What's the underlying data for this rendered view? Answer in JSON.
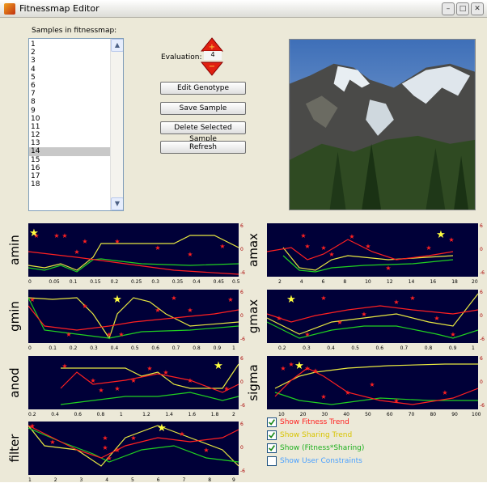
{
  "window": {
    "title": "Fitnessmap Editor",
    "min": "–",
    "max": "□",
    "close": "✕"
  },
  "samples": {
    "label": "Samples in fitnessmap:",
    "items": [
      "1",
      "2",
      "3",
      "4",
      "5",
      "6",
      "7",
      "8",
      "9",
      "10",
      "11",
      "12",
      "13",
      "14",
      "15",
      "16",
      "17",
      "18"
    ],
    "selected": "14"
  },
  "evaluation": {
    "label": "Evaluation:",
    "value": "4"
  },
  "buttons": {
    "edit": "Edit Genotype",
    "save": "Save Sample",
    "delete": "Delete Selected Sample",
    "refresh": "Refresh"
  },
  "colors": {
    "fitness": "#ff2020",
    "sharing": "#e8e840",
    "combined": "#20d020",
    "constraints": "#4aa0ff",
    "star": "#ffff40"
  },
  "plots": [
    {
      "name": "amin",
      "xticks": [
        "0",
        "0.05",
        "0.1",
        "0.15",
        "0.2",
        "0.25",
        "0.3",
        "0.35",
        "0.4",
        "0.45",
        "0.5"
      ],
      "rticks": [
        "6",
        "0",
        "-6"
      ]
    },
    {
      "name": "amax",
      "xticks": [
        "2",
        "4",
        "6",
        "8",
        "10",
        "12",
        "14",
        "16",
        "18",
        "20"
      ],
      "rticks": [
        "6",
        "0",
        "-6"
      ]
    },
    {
      "name": "gmin",
      "xticks": [
        "0",
        "0.1",
        "0.2",
        "0.3",
        "0.4",
        "0.5",
        "0.6",
        "0.7",
        "0.8",
        "0.9",
        "1"
      ],
      "rticks": [
        "6",
        "0",
        "-6"
      ]
    },
    {
      "name": "gmax",
      "xticks": [
        "0.2",
        "0.3",
        "0.4",
        "0.5",
        "0.6",
        "0.7",
        "0.8",
        "0.9",
        "1"
      ],
      "rticks": [
        "6",
        "0",
        "-6"
      ]
    },
    {
      "name": "anod",
      "xticks": [
        "0.2",
        "0.4",
        "0.6",
        "0.8",
        "1",
        "1.2",
        "1.4",
        "1.6",
        "1.8",
        "2"
      ],
      "rticks": [
        "6",
        "0",
        "-6"
      ]
    },
    {
      "name": "sigma",
      "xticks": [
        "10",
        "20",
        "30",
        "40",
        "50",
        "60",
        "70",
        "80",
        "90",
        "100"
      ],
      "rticks": [
        "6",
        "0",
        "-6"
      ]
    },
    {
      "name": "filter",
      "xticks": [
        "1",
        "2",
        "3",
        "4",
        "5",
        "6",
        "7",
        "8",
        "9"
      ],
      "rticks": [
        "6",
        "0",
        "-6"
      ]
    }
  ],
  "checkboxes": [
    {
      "label": "Show Fitness Trend",
      "checked": true,
      "color": "#ff2020"
    },
    {
      "label": "Show Sharing Trend",
      "checked": true,
      "color": "#d8c400"
    },
    {
      "label": "Show (Fitness*Sharing)",
      "checked": true,
      "color": "#20b020"
    },
    {
      "label": "Show User Constraints",
      "checked": false,
      "color": "#4aa0ff"
    }
  ]
}
